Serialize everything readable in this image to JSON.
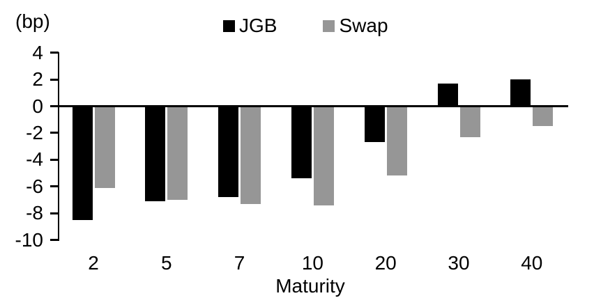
{
  "labels": {
    "unit": "(bp)",
    "x_axis_title": "Maturity"
  },
  "colors": {
    "jgb": "#000000",
    "swap": "#969696",
    "axis": "#000000"
  },
  "chart_data": {
    "type": "bar",
    "title": "",
    "categories": [
      "2",
      "5",
      "7",
      "10",
      "20",
      "30",
      "40"
    ],
    "series": [
      {
        "name": "JGB",
        "color": "#000000",
        "values": [
          -8.5,
          -7.1,
          -6.8,
          -5.4,
          -2.7,
          1.7,
          2.0
        ]
      },
      {
        "name": "Swap",
        "color": "#969696",
        "values": [
          -6.1,
          -7.0,
          -7.3,
          -7.4,
          -5.2,
          -2.3,
          -1.5
        ]
      }
    ],
    "xlabel": "Maturity",
    "ylabel": "(bp)",
    "ylim": [
      -10,
      4
    ],
    "yticks": [
      4,
      2,
      0,
      -2,
      -4,
      -6,
      -8,
      -10
    ],
    "legend_position": "top",
    "grid": false
  }
}
